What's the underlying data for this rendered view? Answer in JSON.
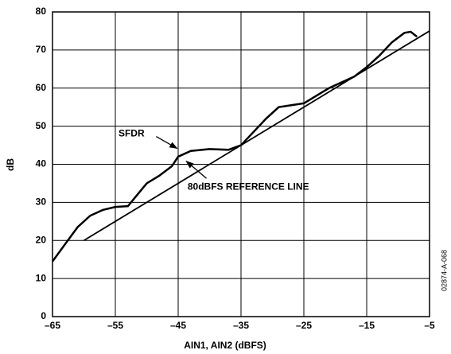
{
  "chart_data": {
    "type": "line",
    "xlabel": "AIN1, AIN2 (dBFS)",
    "ylabel": "dB",
    "series": [
      {
        "name": "SFDR",
        "color": "#000000",
        "x": [
          -65,
          -63,
          -61,
          -59,
          -57,
          -55,
          -53,
          -52,
          -50,
          -48,
          -46,
          -45,
          -43,
          -40,
          -37,
          -35,
          -33,
          -31,
          -29,
          -27,
          -25,
          -23,
          -21,
          -19,
          -17,
          -15,
          -13,
          -11,
          -9,
          -8,
          -7
        ],
        "values": [
          14.5,
          19,
          23.5,
          26.5,
          28,
          28.8,
          29,
          31,
          35,
          37,
          39.5,
          42,
          43.5,
          44,
          43.8,
          45,
          48.5,
          52,
          55,
          55.5,
          56,
          58,
          60,
          61.5,
          63,
          65.5,
          68.5,
          72,
          74.5,
          74.8,
          73.5
        ]
      },
      {
        "name": "80dBFS REFERENCE LINE",
        "color": "#000000",
        "x": [
          -60,
          -5
        ],
        "values": [
          20,
          75
        ]
      }
    ],
    "xlim": [
      -65,
      -5
    ],
    "xticks": [
      {
        "value": -65,
        "label": "–65"
      },
      {
        "value": -55,
        "label": "–55"
      },
      {
        "value": -45,
        "label": "–45"
      },
      {
        "value": -35,
        "label": "–35"
      },
      {
        "value": -25,
        "label": "–25"
      },
      {
        "value": -15,
        "label": "–15"
      },
      {
        "value": -5,
        "label": "–5"
      }
    ],
    "ylim": [
      0,
      80
    ],
    "yticks": [
      0,
      10,
      20,
      30,
      40,
      50,
      60,
      70,
      80
    ],
    "grid": true,
    "figure_id": "02874-A-068"
  }
}
